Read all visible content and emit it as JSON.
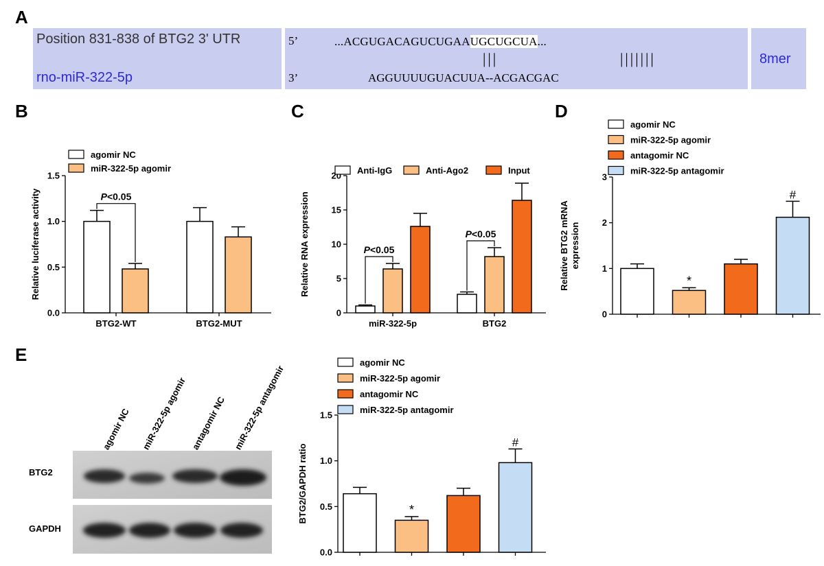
{
  "panelA": {
    "letter": "A",
    "position_label": "Position 831-838 of BTG2 3' UTR",
    "mirna_label": "rno-miR-322-5p",
    "five_prime": "5’",
    "three_prime": "3’",
    "utr_seq_prefix": "...ACGUGACAGUCUGAA",
    "utr_seq_seed": "UGCUGCUA",
    "utr_seq_suffix": "...",
    "pairing_left": "|||",
    "pairing_right": "|||||||",
    "mirna_seq": "AGGUUUUGUACUUA--ACGACGAC",
    "site_type": "8mer",
    "colors": {
      "box": "#c9cdf0",
      "label_blue": "#2b2bd6",
      "label_dark": "#333333"
    }
  },
  "panelB": {
    "letter": "B",
    "chart_data": {
      "type": "bar",
      "categories": [
        "BTG2-WT",
        "BTG2-MUT"
      ],
      "series": [
        {
          "name": "agomir NC",
          "color": "#ffffff",
          "values": [
            1.0,
            1.0
          ],
          "errors": [
            0.12,
            0.15
          ]
        },
        {
          "name": "miR-322-5p agomir",
          "color": "#fbbf84",
          "values": [
            0.48,
            0.83
          ],
          "errors": [
            0.06,
            0.11
          ]
        }
      ],
      "ylabel": "Relative luciferase activity",
      "ylim": [
        0,
        1.5
      ],
      "yticks": [
        "0.0",
        "0.5",
        "1.0",
        "1.5"
      ],
      "annotation": {
        "text": "P<0.05",
        "category": "BTG2-WT"
      }
    }
  },
  "panelC": {
    "letter": "C",
    "chart_data": {
      "type": "bar",
      "categories": [
        "miR-322-5p",
        "BTG2"
      ],
      "series": [
        {
          "name": "Anti-IgG",
          "color": "#ffffff",
          "values": [
            1.0,
            2.7
          ],
          "errors": [
            0.15,
            0.35
          ]
        },
        {
          "name": "Anti-Ago2",
          "color": "#fbbf84",
          "values": [
            6.4,
            8.2
          ],
          "errors": [
            0.8,
            1.3
          ]
        },
        {
          "name": "Input",
          "color": "#f26a1b",
          "values": [
            12.6,
            16.4
          ],
          "errors": [
            1.9,
            2.5
          ]
        }
      ],
      "ylabel": "Relative RNA expression",
      "ylim": [
        0,
        20
      ],
      "yticks": [
        "0",
        "5",
        "10",
        "15",
        "20"
      ],
      "annotations": [
        {
          "text": "P<0.05",
          "category": "miR-322-5p"
        },
        {
          "text": "P<0.05",
          "category": "BTG2"
        }
      ]
    }
  },
  "panelD": {
    "letter": "D",
    "chart_data": {
      "type": "bar",
      "categories": [
        "agomir NC",
        "miR-322-5p agomir",
        "antagomir NC",
        "miR-322-5p antagomir"
      ],
      "colors": [
        "#ffffff",
        "#fbbf84",
        "#f26a1b",
        "#c5dcf5"
      ],
      "values": [
        1.0,
        0.52,
        1.1,
        2.12
      ],
      "errors": [
        0.1,
        0.06,
        0.1,
        0.35
      ],
      "marks": [
        "",
        "*",
        "",
        "#"
      ],
      "ylabel": "Relative BTG2 mRNA expression",
      "ylabel_lines": [
        "Relative BTG2 mRNA",
        "expression"
      ],
      "ylim": [
        0,
        3
      ],
      "yticks": [
        "0",
        "1",
        "2",
        "3"
      ]
    }
  },
  "panelE": {
    "letter": "E",
    "blot": {
      "lanes": [
        "agomir NC",
        "miR-322-5p agomir",
        "antagomir NC",
        "miR-322-5p antagomir"
      ],
      "rows": [
        "BTG2",
        "GAPDH"
      ]
    },
    "chart_data": {
      "type": "bar",
      "categories": [
        "agomir NC",
        "miR-322-5p agomir",
        "antagomir NC",
        "miR-322-5p antagomir"
      ],
      "colors": [
        "#ffffff",
        "#fbbf84",
        "#f26a1b",
        "#c5dcf5"
      ],
      "values": [
        0.64,
        0.35,
        0.62,
        0.98
      ],
      "errors": [
        0.07,
        0.04,
        0.08,
        0.15
      ],
      "marks": [
        "",
        "*",
        "",
        "#"
      ],
      "ylabel": "BTG2/GAPDH ratio",
      "ylim": [
        0,
        1.5
      ],
      "yticks": [
        "0.0",
        "0.5",
        "1.0",
        "1.5"
      ]
    }
  }
}
